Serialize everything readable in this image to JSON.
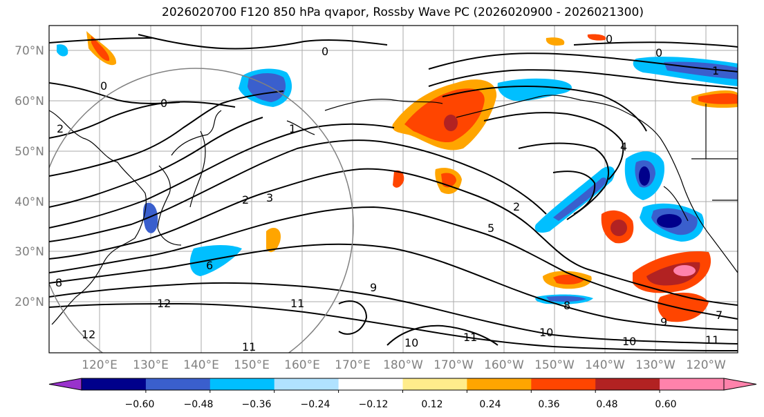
{
  "title": "2026020700 F120 850 hPa qvapor, Rossby Wave PC (2026020900 - 2026021300)",
  "lat_labels": [
    "70°N",
    "60°N",
    "50°N",
    "40°N",
    "30°N",
    "20°N"
  ],
  "lon_labels": [
    "120°E",
    "130°E",
    "140°E",
    "150°E",
    "160°E",
    "170°E",
    "180°W",
    "170°W",
    "160°W",
    "150°W",
    "140°W",
    "130°W",
    "120°W"
  ],
  "colorbar": {
    "ticks": [
      "−0.60",
      "−0.48",
      "−0.36",
      "−0.24",
      "−0.12",
      "0.12",
      "0.24",
      "0.36",
      "0.48",
      "0.60"
    ],
    "colors": [
      "#9932cc",
      "#00008b",
      "#3a5fcd",
      "#00bfff",
      "#b0e2ff",
      "#ffffff",
      "#ffec8b",
      "#ffa500",
      "#ff4500",
      "#b22222",
      "#ff82ab",
      "#ff82ab"
    ]
  },
  "contour_labels": [
    "0",
    "0",
    "0",
    "0",
    "0",
    "1",
    "1",
    "2",
    "3",
    "2",
    "4",
    "5",
    "7",
    "8",
    "8",
    "9",
    "9",
    "10",
    "10",
    "10",
    "11",
    "11",
    "11",
    "11",
    "12",
    "2",
    "6",
    "12"
  ]
}
